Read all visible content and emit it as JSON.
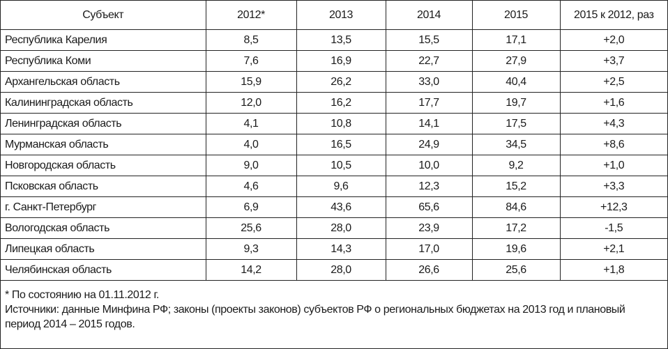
{
  "table": {
    "header": [
      "Субъект",
      "2012*",
      "2013",
      "2014",
      "2015",
      "2015 к 2012, раз"
    ],
    "rows": [
      [
        "Республика Карелия",
        "8,5",
        "13,5",
        "15,5",
        "17,1",
        "+2,0"
      ],
      [
        "Республика Коми",
        "7,6",
        "16,9",
        "22,7",
        "27,9",
        "+3,7"
      ],
      [
        "Архангельская область",
        "15,9",
        "26,2",
        "33,0",
        "40,4",
        "+2,5"
      ],
      [
        "Калининградская область",
        "12,0",
        "16,2",
        "17,7",
        "19,7",
        "+1,6"
      ],
      [
        "Ленинградская область",
        "4,1",
        "10,8",
        "14,1",
        "17,5",
        "+4,3"
      ],
      [
        "Мурманская область",
        "4,0",
        "16,5",
        "24,9",
        "34,5",
        "+8,6"
      ],
      [
        "Новгородская область",
        "9,0",
        "10,5",
        "10,0",
        "9,2",
        "+1,0"
      ],
      [
        "Псковская область",
        "4,6",
        "9,6",
        "12,3",
        "15,2",
        "+3,3"
      ],
      [
        "г. Санкт-Петербург",
        "6,9",
        "43,6",
        "65,6",
        "84,6",
        "+12,3"
      ],
      [
        "Вологодская область",
        "25,6",
        "28,0",
        "23,9",
        "17,2",
        "-1,5"
      ],
      [
        "Липецкая область",
        "9,3",
        "14,3",
        "17,0",
        "19,6",
        "+2,1"
      ],
      [
        "Челябинская область",
        "14,2",
        "28,0",
        "26,6",
        "25,6",
        "+1,8"
      ]
    ],
    "notes": [
      "* По состоянию на 01.11.2012 г.",
      "Источники: данные Минфина РФ; законы (проекты законов) субъектов РФ о региональных бюджетах на 2013 год и плановый период 2014 – 2015 годов."
    ]
  }
}
